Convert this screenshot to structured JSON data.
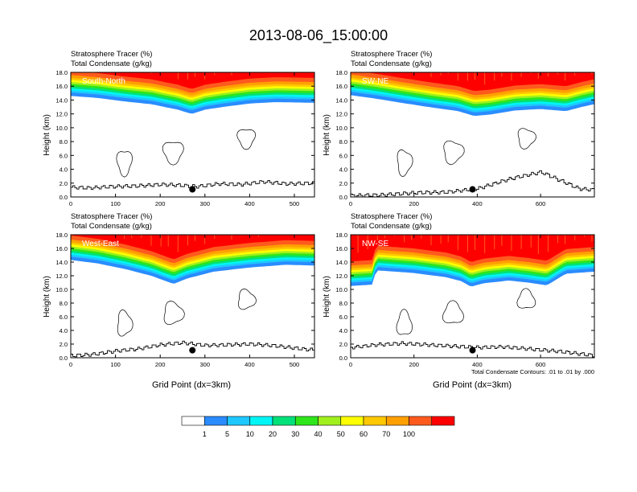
{
  "title": "2013-08-06_15:00:00",
  "colors": {
    "levels": [
      "#ffffff",
      "#2a8cff",
      "#1ec8ff",
      "#00f5f5",
      "#00e17a",
      "#2ee61a",
      "#a0f01e",
      "#ffff00",
      "#ffc800",
      "#ffa000",
      "#ff5a1e",
      "#ff0000"
    ]
  },
  "colorbar": {
    "labels": [
      "1",
      "5",
      "10",
      "20",
      "30",
      "40",
      "50",
      "60",
      "70",
      "100"
    ]
  },
  "chart_data": [
    {
      "type": "heatmap",
      "name": "South-North",
      "subtitle_line1": "Stratosphere Tracer   (%)",
      "subtitle_line2": "Total Condensate   (g/kg)",
      "ylabel": "Height (km)",
      "xlabel": "",
      "xlim": [
        0,
        545
      ],
      "ylim": [
        0,
        18
      ],
      "xticks": [
        0,
        100,
        200,
        300,
        400,
        500
      ],
      "xtick_labels": [
        "0",
        "100",
        "200",
        "300",
        "400",
        "500"
      ],
      "yticks": [
        0,
        2,
        4,
        6,
        8,
        10,
        12,
        14,
        16,
        18
      ],
      "ytick_labels": [
        "0.0",
        "2.0",
        "4.0",
        "6.0",
        "8.0",
        "10.0",
        "12.0",
        "14.0",
        "16.0",
        "18.0"
      ],
      "tracer_base_km": [
        [
          0,
          14.6
        ],
        [
          60,
          14.3
        ],
        [
          120,
          13.8
        ],
        [
          180,
          13.4
        ],
        [
          240,
          12.6
        ],
        [
          270,
          12.0
        ],
        [
          300,
          12.6
        ],
        [
          340,
          13.0
        ],
        [
          400,
          13.5
        ],
        [
          460,
          13.7
        ],
        [
          545,
          13.6
        ]
      ],
      "terrain_km": [
        [
          0,
          1.4
        ],
        [
          40,
          1.3
        ],
        [
          90,
          1.5
        ],
        [
          150,
          1.6
        ],
        [
          200,
          1.8
        ],
        [
          240,
          1.7
        ],
        [
          280,
          1.5
        ],
        [
          330,
          1.9
        ],
        [
          380,
          1.8
        ],
        [
          430,
          2.2
        ],
        [
          480,
          1.9
        ],
        [
          545,
          2.0
        ]
      ],
      "marker": [
        272,
        1.1
      ]
    },
    {
      "type": "heatmap",
      "name": "SW-NE",
      "subtitle_line1": "Stratosphere Tracer   (%)",
      "subtitle_line2": "Total Condensate   (g/kg)",
      "ylabel": "Height (km)",
      "xlabel": "",
      "xlim": [
        0,
        770
      ],
      "ylim": [
        0,
        18
      ],
      "xticks": [
        0,
        200,
        400,
        600
      ],
      "xtick_labels": [
        "0",
        "200",
        "400",
        "600"
      ],
      "yticks": [
        0,
        2,
        4,
        6,
        8,
        10,
        12,
        14,
        16,
        18
      ],
      "ytick_labels": [
        "0.0",
        "2.0",
        "4.0",
        "6.0",
        "8.0",
        "10.0",
        "12.0",
        "14.0",
        "16.0",
        "18.0"
      ],
      "tracer_base_km": [
        [
          0,
          14.7
        ],
        [
          80,
          14.2
        ],
        [
          160,
          13.6
        ],
        [
          260,
          12.9
        ],
        [
          340,
          12.4
        ],
        [
          390,
          11.7
        ],
        [
          440,
          11.9
        ],
        [
          520,
          12.5
        ],
        [
          600,
          12.7
        ],
        [
          680,
          12.4
        ],
        [
          730,
          13.0
        ],
        [
          770,
          13.4
        ]
      ],
      "terrain_km": [
        [
          0,
          0.2
        ],
        [
          100,
          0.3
        ],
        [
          200,
          0.6
        ],
        [
          300,
          0.7
        ],
        [
          400,
          1.2
        ],
        [
          500,
          2.6
        ],
        [
          560,
          3.2
        ],
        [
          600,
          3.6
        ],
        [
          680,
          2.0
        ],
        [
          720,
          1.2
        ],
        [
          770,
          1.0
        ]
      ],
      "marker": [
        385,
        1.1
      ]
    },
    {
      "type": "heatmap",
      "name": "West-East",
      "subtitle_line1": "Stratosphere Tracer   (%)",
      "subtitle_line2": "Total Condensate   (g/kg)",
      "ylabel": "Height (km)",
      "xlabel": "Grid Point (dx=3km)",
      "xlim": [
        0,
        545
      ],
      "ylim": [
        0,
        18
      ],
      "xticks": [
        0,
        100,
        200,
        300,
        400,
        500
      ],
      "xtick_labels": [
        "0",
        "100",
        "200",
        "300",
        "400",
        "500"
      ],
      "yticks": [
        0,
        2,
        4,
        6,
        8,
        10,
        12,
        14,
        16,
        18
      ],
      "ytick_labels": [
        "0.0",
        "2.0",
        "4.0",
        "6.0",
        "8.0",
        "10.0",
        "12.0",
        "14.0",
        "16.0",
        "18.0"
      ],
      "tracer_base_km": [
        [
          0,
          14.3
        ],
        [
          60,
          13.8
        ],
        [
          120,
          13.0
        ],
        [
          180,
          12.0
        ],
        [
          230,
          10.8
        ],
        [
          260,
          11.6
        ],
        [
          320,
          12.6
        ],
        [
          400,
          13.2
        ],
        [
          480,
          13.6
        ],
        [
          545,
          13.5
        ]
      ],
      "terrain_km": [
        [
          0,
          0.3
        ],
        [
          50,
          0.5
        ],
        [
          100,
          1.0
        ],
        [
          150,
          1.3
        ],
        [
          200,
          1.9
        ],
        [
          250,
          2.2
        ],
        [
          300,
          1.8
        ],
        [
          350,
          1.9
        ],
        [
          400,
          2.0
        ],
        [
          450,
          1.8
        ],
        [
          500,
          1.4
        ],
        [
          545,
          1.1
        ]
      ],
      "marker": [
        272,
        1.1
      ]
    },
    {
      "type": "heatmap",
      "name": "NW-SE",
      "subtitle_line1": "Stratosphere Tracer   (%)",
      "subtitle_line2": "Total Condensate   (g/kg)",
      "ylabel": "Height (km)",
      "xlabel": "Grid Point (dx=3km)",
      "xlim": [
        0,
        770
      ],
      "ylim": [
        0,
        18
      ],
      "xticks": [
        0,
        200,
        400,
        600
      ],
      "xtick_labels": [
        "0",
        "200",
        "400",
        "600"
      ],
      "yticks": [
        0,
        2,
        4,
        6,
        8,
        10,
        12,
        14,
        16,
        18
      ],
      "ytick_labels": [
        "0.0",
        "2.0",
        "4.0",
        "6.0",
        "8.0",
        "10.0",
        "12.0",
        "14.0",
        "16.0",
        "18.0"
      ],
      "tracer_base_km": [
        [
          0,
          10.5
        ],
        [
          70,
          10.7
        ],
        [
          80,
          12.8
        ],
        [
          200,
          12.4
        ],
        [
          300,
          11.8
        ],
        [
          350,
          11.2
        ],
        [
          380,
          10.4
        ],
        [
          420,
          10.9
        ],
        [
          500,
          11.3
        ],
        [
          560,
          11.0
        ],
        [
          620,
          10.6
        ],
        [
          680,
          12.3
        ],
        [
          770,
          12.6
        ]
      ],
      "terrain_km": [
        [
          0,
          1.5
        ],
        [
          80,
          1.9
        ],
        [
          160,
          2.1
        ],
        [
          240,
          1.9
        ],
        [
          320,
          1.7
        ],
        [
          400,
          1.5
        ],
        [
          480,
          1.6
        ],
        [
          560,
          1.3
        ],
        [
          640,
          1.0
        ],
        [
          700,
          0.7
        ],
        [
          770,
          0.3
        ]
      ],
      "marker": [
        385,
        1.1
      ],
      "note": "Total Condensate Contours: .01 to .01 by .000"
    }
  ]
}
